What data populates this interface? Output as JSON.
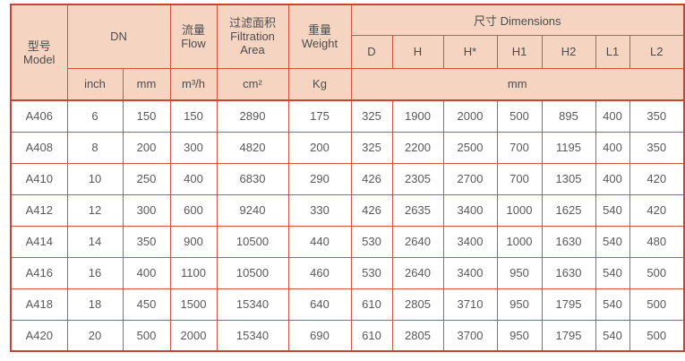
{
  "style": {
    "grid_border_color": "#d9523f",
    "outer_border_color": "#c44532",
    "header_background": "#f5d5c1",
    "header_text_color": "#4c4c4c",
    "data_text_color": "#595959"
  },
  "table": {
    "header": {
      "model": {
        "zh": "型号",
        "en": "Model"
      },
      "dn": "DN",
      "flow": {
        "zh": "流量",
        "en": "Flow"
      },
      "filtration": {
        "zh": "过滤面积",
        "en_line1": "Filtration",
        "en_line2": "Area"
      },
      "weight": {
        "zh": "重量",
        "en": "Weight"
      },
      "dimensions": {
        "zh": "尺寸",
        "en": "Dimensions"
      },
      "dim_cols": [
        "D",
        "H",
        "H*",
        "H1",
        "H2",
        "L1",
        "L2"
      ],
      "units": {
        "inch": "inch",
        "mm": "mm",
        "flow": "m³/h",
        "area": "cm²",
        "weight": "Kg",
        "dims": "mm"
      }
    },
    "rows": [
      {
        "model": "A406",
        "inch": "6",
        "mm": "150",
        "flow": "150",
        "area": "2890",
        "weight": "175",
        "dims": [
          "325",
          "1900",
          "2000",
          "500",
          "895",
          "400",
          "350"
        ]
      },
      {
        "model": "A408",
        "inch": "8",
        "mm": "200",
        "flow": "300",
        "area": "4820",
        "weight": "200",
        "dims": [
          "325",
          "2200",
          "2500",
          "700",
          "1195",
          "400",
          "350"
        ]
      },
      {
        "model": "A410",
        "inch": "10",
        "mm": "250",
        "flow": "400",
        "area": "6830",
        "weight": "290",
        "dims": [
          "426",
          "2305",
          "2700",
          "700",
          "1305",
          "400",
          "420"
        ]
      },
      {
        "model": "A412",
        "inch": "12",
        "mm": "300",
        "flow": "600",
        "area": "9240",
        "weight": "330",
        "dims": [
          "426",
          "2635",
          "3400",
          "1000",
          "1625",
          "540",
          "420"
        ]
      },
      {
        "model": "A414",
        "inch": "14",
        "mm": "350",
        "flow": "900",
        "area": "10500",
        "weight": "440",
        "dims": [
          "530",
          "2640",
          "3400",
          "1000",
          "1630",
          "540",
          "480"
        ]
      },
      {
        "model": "A416",
        "inch": "16",
        "mm": "400",
        "flow": "1100",
        "area": "10500",
        "weight": "460",
        "dims": [
          "530",
          "2640",
          "3400",
          "950",
          "1630",
          "540",
          "500"
        ]
      },
      {
        "model": "A418",
        "inch": "18",
        "mm": "450",
        "flow": "1500",
        "area": "15340",
        "weight": "640",
        "dims": [
          "610",
          "2805",
          "3710",
          "950",
          "1795",
          "540",
          "500"
        ]
      },
      {
        "model": "A420",
        "inch": "20",
        "mm": "500",
        "flow": "2000",
        "area": "15340",
        "weight": "690",
        "dims": [
          "610",
          "2805",
          "3700",
          "950",
          "1795",
          "540",
          "500"
        ]
      }
    ]
  }
}
